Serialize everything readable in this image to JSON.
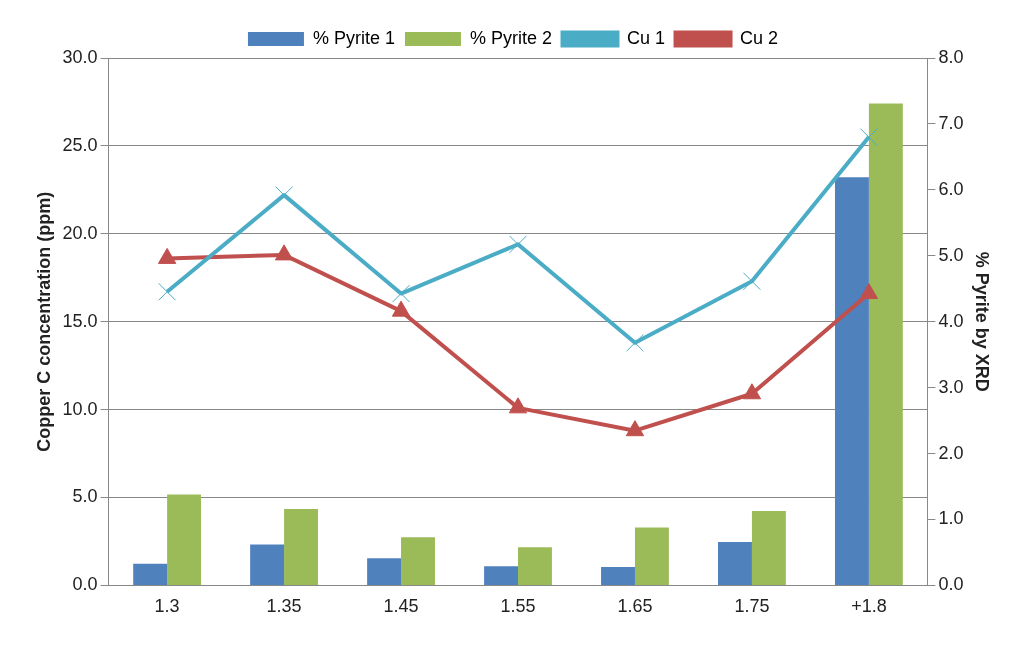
{
  "chart_data": {
    "type": "bar",
    "categories": [
      "1.3",
      "1.35",
      "1.45",
      "1.55",
      "1.65",
      "1.75",
      "+1.8"
    ],
    "ylabel": "Copper C concentration (ppm)",
    "y2label": "% Pyrite by XRD",
    "ylim": [
      0,
      30
    ],
    "yticks": [
      {
        "value": 0,
        "label": "0.0"
      },
      {
        "value": 5,
        "label": "5.0"
      },
      {
        "value": 10,
        "label": "10.0"
      },
      {
        "value": 15,
        "label": "15.0"
      },
      {
        "value": 20,
        "label": "20.0"
      },
      {
        "value": 25,
        "label": "25.0"
      },
      {
        "value": 30,
        "label": "30.0"
      }
    ],
    "y2lim": [
      0,
      8
    ],
    "y2ticks": [
      {
        "value": 0,
        "label": "0.0"
      },
      {
        "value": 1,
        "label": "1.0"
      },
      {
        "value": 2,
        "label": "2.0"
      },
      {
        "value": 3,
        "label": "3.0"
      },
      {
        "value": 4,
        "label": "4.0"
      },
      {
        "value": 5,
        "label": "5.0"
      },
      {
        "value": 6,
        "label": "6.0"
      },
      {
        "value": 7,
        "label": "7.0"
      },
      {
        "value": 8,
        "label": "8.0"
      }
    ],
    "grid": "y",
    "legend": "top",
    "series": [
      {
        "name": "% Pyrite 1",
        "axis": "y2",
        "color": "#4f81bd",
        "values": [
          0.33,
          0.62,
          0.41,
          0.29,
          0.28,
          0.66,
          6.19
        ]
      },
      {
        "name": "% Pyrite 2",
        "axis": "y2",
        "color": "#9bbb59",
        "values": [
          1.38,
          1.16,
          0.73,
          0.58,
          0.88,
          1.13,
          7.31
        ]
      },
      {
        "name": "Cu 1",
        "type": "line",
        "color": "#4bacc6",
        "marker": "cross",
        "values": [
          16.7,
          22.2,
          16.6,
          19.4,
          13.8,
          17.3,
          25.5
        ]
      },
      {
        "name": "Cu 2",
        "type": "line",
        "color": "#c0504d",
        "marker": "triangle",
        "values": [
          18.6,
          18.8,
          15.6,
          10.1,
          8.8,
          10.9,
          16.6
        ]
      }
    ]
  }
}
